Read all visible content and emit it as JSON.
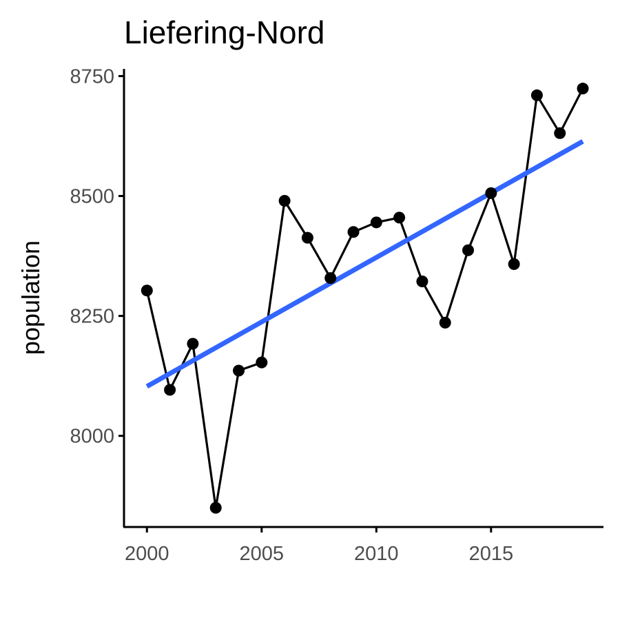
{
  "chart_data": {
    "type": "line",
    "title": "Liefering-Nord",
    "xlabel": "",
    "ylabel": "population",
    "xlim": [
      1999.0,
      2019.9
    ],
    "ylim": [
      7810,
      8765
    ],
    "x_ticks": [
      "2000",
      "2005",
      "2010",
      "2015"
    ],
    "y_ticks": [
      "8000",
      "8250",
      "8500",
      "8750"
    ],
    "grid": false,
    "x": [
      2000,
      2001,
      2002,
      2003,
      2004,
      2005,
      2006,
      2007,
      2008,
      2009,
      2010,
      2011,
      2012,
      2013,
      2014,
      2015,
      2016,
      2017,
      2018,
      2019
    ],
    "series": [
      {
        "values": [
          8303,
          8096,
          8192,
          7850,
          8136,
          8153,
          8490,
          8413,
          8329,
          8425,
          8445,
          8455,
          8322,
          8236,
          8387,
          8506,
          8358,
          8710,
          8631,
          8724
        ],
        "color": "#000000"
      }
    ],
    "trend": {
      "x": [
        2000,
        2019
      ],
      "values": [
        8103,
        8614
      ],
      "color": "#3366ff"
    }
  }
}
